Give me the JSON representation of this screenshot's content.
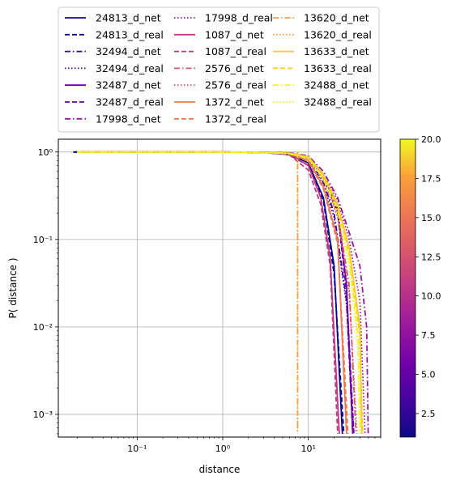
{
  "chart_data": {
    "type": "line",
    "title": "",
    "xlabel": "distance",
    "ylabel": "P( distance )",
    "xscale": "log",
    "yscale": "log",
    "xlim": [
      0.012,
      70
    ],
    "ylim": [
      0.00055,
      1.4
    ],
    "x_ticks": [
      {
        "value": 0.1,
        "label": "10⁻¹"
      },
      {
        "value": 1,
        "label": "10⁰"
      },
      {
        "value": 10,
        "label": "10¹"
      }
    ],
    "y_ticks": [
      {
        "value": 0.001,
        "label": "10⁻³"
      },
      {
        "value": 0.01,
        "label": "10⁻²"
      },
      {
        "value": 0.1,
        "label": "10⁻¹"
      },
      {
        "value": 1,
        "label": "10⁰"
      }
    ],
    "grid": true,
    "legend_position": "above plot, 3 columns",
    "colorbar": {
      "colormap": "plasma",
      "range": [
        1,
        20
      ],
      "ticks": [
        2.5,
        5.0,
        7.5,
        10.0,
        12.5,
        15.0,
        17.5,
        20.0
      ],
      "tick_labels": [
        "2.5",
        "5.0",
        "7.5",
        "10.0",
        "12.5",
        "15.0",
        "17.5",
        "20.0"
      ]
    },
    "series": [
      {
        "name": "24813_d_net",
        "color": "#0d0887",
        "dash": "solid",
        "x": [
          0.018,
          0.3,
          1,
          3,
          6,
          10,
          15,
          20,
          25
        ],
        "y": [
          1,
          1,
          1,
          0.99,
          0.95,
          0.75,
          0.3,
          0.05,
          0.0006
        ]
      },
      {
        "name": "24813_d_real",
        "color": "#0d0887",
        "dash": "dashed",
        "x": [
          0.018,
          0.3,
          1,
          3,
          6,
          10,
          15,
          20,
          26
        ],
        "y": [
          1,
          1,
          1,
          0.99,
          0.93,
          0.7,
          0.28,
          0.04,
          0.0006
        ]
      },
      {
        "name": "32494_d_net",
        "color": "#3c049b",
        "dash": "dashdot",
        "x": [
          0.02,
          0.3,
          1,
          3,
          6,
          10,
          15,
          20,
          28,
          33
        ],
        "y": [
          1,
          1,
          1,
          0.99,
          0.97,
          0.85,
          0.45,
          0.2,
          0.02,
          0.0006
        ]
      },
      {
        "name": "32494_d_real",
        "color": "#3c049b",
        "dash": "dotted",
        "x": [
          0.02,
          0.3,
          1,
          3,
          6,
          10,
          15,
          20,
          28,
          34
        ],
        "y": [
          1,
          1,
          1,
          0.99,
          0.96,
          0.83,
          0.42,
          0.18,
          0.018,
          0.0006
        ]
      },
      {
        "name": "32487_d_net",
        "color": "#6a00a8",
        "dash": "solid",
        "x": [
          0.02,
          0.3,
          1,
          3,
          6,
          10,
          15,
          22,
          28,
          33
        ],
        "y": [
          1,
          1,
          1,
          0.99,
          0.97,
          0.88,
          0.55,
          0.22,
          0.03,
          0.0006
        ]
      },
      {
        "name": "32487_d_real",
        "color": "#6a00a8",
        "dash": "dashed",
        "x": [
          0.02,
          0.3,
          1,
          3,
          6,
          10,
          15,
          22,
          28,
          34
        ],
        "y": [
          1,
          1,
          1,
          0.99,
          0.96,
          0.85,
          0.5,
          0.2,
          0.025,
          0.0006
        ]
      },
      {
        "name": "17998_d_net",
        "color": "#9c179e",
        "dash": "dashdot",
        "x": [
          0.02,
          0.3,
          1,
          3,
          6,
          10,
          15,
          22,
          30,
          40,
          48,
          50
        ],
        "y": [
          1,
          1,
          1,
          0.995,
          0.98,
          0.9,
          0.6,
          0.3,
          0.12,
          0.05,
          0.01,
          0.0006
        ]
      },
      {
        "name": "17998_d_real",
        "color": "#9c179e",
        "dash": "dotted",
        "x": [
          0.02,
          0.3,
          1,
          3,
          6,
          10,
          15,
          22,
          30,
          40,
          46
        ],
        "y": [
          1,
          1,
          1,
          0.99,
          0.97,
          0.88,
          0.55,
          0.28,
          0.1,
          0.02,
          0.0006
        ]
      },
      {
        "name": "1087_d_net",
        "color": "#bd3786",
        "dash": "solid",
        "x": [
          0.02,
          0.3,
          1,
          3,
          6,
          10,
          14,
          18,
          23
        ],
        "y": [
          1,
          1,
          1,
          0.99,
          0.95,
          0.7,
          0.3,
          0.06,
          0.0006
        ]
      },
      {
        "name": "1087_d_real",
        "color": "#bd3786",
        "dash": "dashed",
        "x": [
          0.02,
          0.3,
          1,
          3,
          6,
          10,
          14,
          18,
          22
        ],
        "y": [
          1,
          1,
          1,
          0.99,
          0.93,
          0.62,
          0.25,
          0.05,
          0.0006
        ]
      },
      {
        "name": "2576_d_net",
        "color": "#d8576b",
        "dash": "dashdot",
        "x": [
          0.02,
          0.3,
          1,
          3,
          6,
          10,
          15,
          22,
          30,
          36
        ],
        "y": [
          1,
          1,
          1,
          0.99,
          0.97,
          0.86,
          0.5,
          0.2,
          0.03,
          0.0006
        ]
      },
      {
        "name": "2576_d_real",
        "color": "#d8576b",
        "dash": "dotted",
        "x": [
          0.02,
          0.3,
          1,
          3,
          6,
          10,
          15,
          22,
          30,
          37
        ],
        "y": [
          1,
          1,
          1,
          0.99,
          0.96,
          0.84,
          0.48,
          0.18,
          0.025,
          0.0006
        ]
      },
      {
        "name": "1372_d_net",
        "color": "#ed7953",
        "dash": "solid",
        "x": [
          0.02,
          0.3,
          1,
          3,
          6,
          10,
          15,
          22,
          28
        ],
        "y": [
          1,
          1,
          1,
          0.99,
          0.96,
          0.8,
          0.4,
          0.1,
          0.0006
        ]
      },
      {
        "name": "1372_d_real",
        "color": "#ed7953",
        "dash": "dashed",
        "x": [
          0.02,
          0.3,
          1,
          3,
          6,
          10,
          15,
          22,
          29
        ],
        "y": [
          1,
          1,
          1,
          0.99,
          0.95,
          0.78,
          0.38,
          0.09,
          0.0006
        ]
      },
      {
        "name": "13620_d_net",
        "color": "#fb9f3a",
        "dash": "dashdot",
        "x": [
          7.5,
          7.5
        ],
        "y": [
          1,
          0.0006
        ]
      },
      {
        "name": "13620_d_real",
        "color": "#fb9f3a",
        "dash": "dotted",
        "x": [
          7.5,
          7.5
        ],
        "y": [
          1,
          0.0006
        ]
      },
      {
        "name": "13633_d_net",
        "color": "#fdca26",
        "dash": "solid",
        "x": [
          0.02,
          0.3,
          1,
          3,
          6,
          10,
          15,
          22,
          30,
          40,
          42
        ],
        "y": [
          1,
          1,
          1,
          0.99,
          0.97,
          0.88,
          0.55,
          0.25,
          0.08,
          0.01,
          0.0006
        ]
      },
      {
        "name": "13633_d_real",
        "color": "#fdca26",
        "dash": "dashed",
        "x": [
          0.02,
          0.3,
          1,
          3,
          6,
          10,
          15,
          22,
          30,
          40,
          43
        ],
        "y": [
          1,
          1,
          1,
          0.99,
          0.96,
          0.86,
          0.52,
          0.23,
          0.07,
          0.008,
          0.0006
        ]
      },
      {
        "name": "32488_d_net",
        "color": "#f0f921",
        "dash": "dashdot",
        "x": [
          0.02,
          0.3,
          1,
          3,
          6,
          10,
          15,
          22,
          30,
          38,
          40
        ],
        "y": [
          1,
          1,
          1,
          0.99,
          0.96,
          0.85,
          0.5,
          0.22,
          0.06,
          0.008,
          0.0006
        ]
      },
      {
        "name": "32488_d_real",
        "color": "#f0f921",
        "dash": "dotted",
        "x": [
          0.02,
          0.3,
          1,
          3,
          6,
          10,
          15,
          22,
          30,
          38,
          41
        ],
        "y": [
          1,
          1,
          1,
          0.99,
          0.95,
          0.83,
          0.48,
          0.2,
          0.05,
          0.006,
          0.0006
        ]
      }
    ]
  }
}
